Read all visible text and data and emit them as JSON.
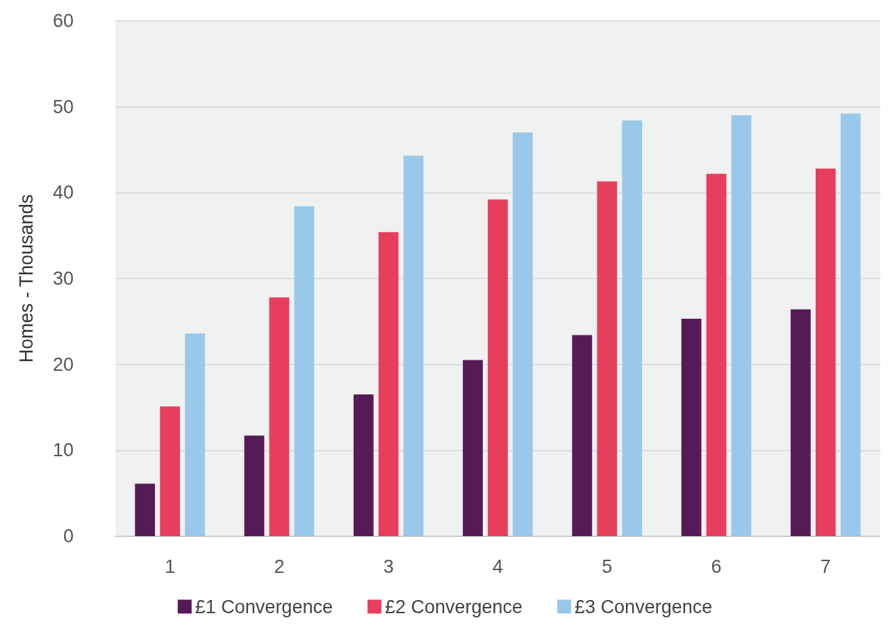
{
  "chart_data": {
    "type": "bar",
    "ylabel": "Homes - Thousands",
    "categories": [
      "1",
      "2",
      "3",
      "4",
      "5",
      "6",
      "7"
    ],
    "series": [
      {
        "name": "£1 Convergence",
        "color": "#561b57",
        "values": [
          6.1,
          11.7,
          16.5,
          20.5,
          23.4,
          25.3,
          26.4
        ]
      },
      {
        "name": "£2 Convergence",
        "color": "#e83e5d",
        "values": [
          15.1,
          27.8,
          35.4,
          39.2,
          41.3,
          42.2,
          42.8
        ]
      },
      {
        "name": "£3 Convergence",
        "color": "#99c8ea",
        "values": [
          23.6,
          38.4,
          44.3,
          47.0,
          48.4,
          49.0,
          49.2
        ]
      }
    ],
    "ylim": [
      0,
      60
    ],
    "yticks": [
      0,
      10,
      20,
      30,
      40,
      50,
      60
    ],
    "grid": "y",
    "legend": "bottom"
  }
}
